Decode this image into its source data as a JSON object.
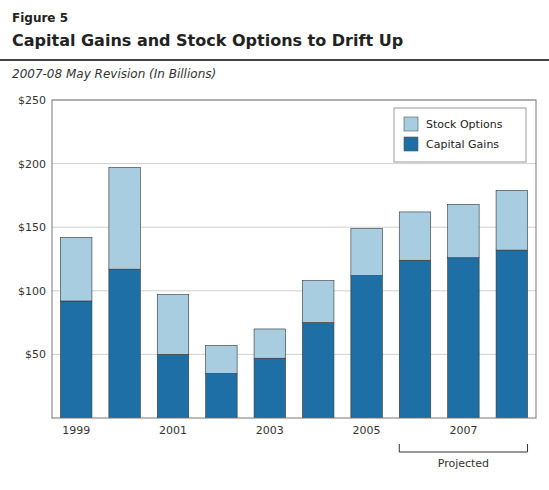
{
  "chart_data": {
    "type": "bar",
    "stacked": true,
    "title": "Capital Gains and Stock Options to Drift Up",
    "subtitle": "2007-08 May Revision (In Billions)",
    "annotations": [
      {
        "text": "Figure 5"
      },
      {
        "text": "Projected",
        "indices": [
          7,
          8,
          9
        ]
      }
    ],
    "categories": [
      "1999",
      null,
      "2001",
      null,
      "2003",
      null,
      "2005",
      null,
      "2007",
      null
    ],
    "series": [
      {
        "name": "Capital Gains",
        "color": "#1e6fa5",
        "values": [
          92,
          117,
          50,
          35,
          47,
          75,
          112,
          124,
          126,
          132
        ]
      },
      {
        "name": "Stock Options",
        "color": "#a8cde0",
        "values": [
          50,
          80,
          47,
          22,
          23,
          33,
          37,
          38,
          42,
          47
        ]
      }
    ],
    "ylim": [
      0,
      250
    ],
    "yticks": [
      {
        "value": 50,
        "label": "$50"
      },
      {
        "value": 100,
        "label": "$100"
      },
      {
        "value": 150,
        "label": "$150"
      },
      {
        "value": 200,
        "label": "$200"
      },
      {
        "value": 250,
        "label": "$250"
      }
    ],
    "grid": true,
    "legend": "top-right"
  }
}
